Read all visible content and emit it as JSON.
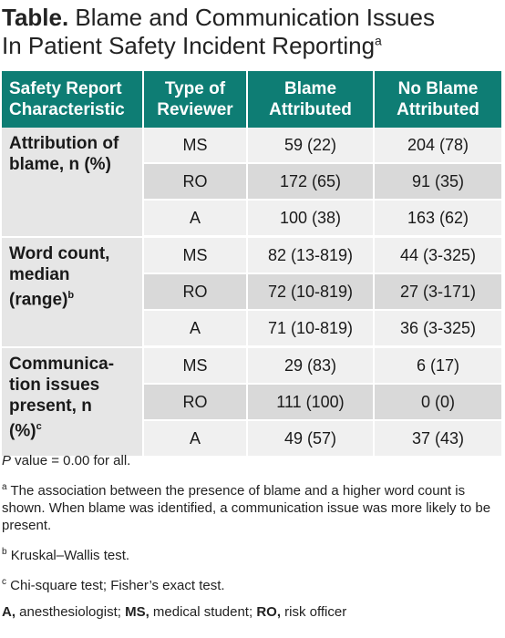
{
  "title": {
    "prefix": "Table.",
    "line1": " Blame and Communication Issues",
    "line2": "In Patient Safety Incident Reporting",
    "sup": "a"
  },
  "headers": {
    "col1": [
      "Safety Report",
      "Characteristic"
    ],
    "col2": [
      "Type of",
      "Reviewer"
    ],
    "col3": [
      "Blame",
      "Attributed"
    ],
    "col4": [
      "No Blame",
      "Attributed"
    ]
  },
  "groups": [
    {
      "label": [
        "Attribution of",
        "blame, n (%)"
      ],
      "sup": "",
      "rows": [
        {
          "reviewer": "MS",
          "blame": "59 (22)",
          "no_blame": "204 (78)"
        },
        {
          "reviewer": "RO",
          "blame": "172 (65)",
          "no_blame": "91 (35)"
        },
        {
          "reviewer": "A",
          "blame": "100 (38)",
          "no_blame": "163 (62)"
        }
      ]
    },
    {
      "label": [
        "Word count,",
        "median",
        "(range)"
      ],
      "sup": "b",
      "rows": [
        {
          "reviewer": "MS",
          "blame": "82 (13-819)",
          "no_blame": "44 (3-325)"
        },
        {
          "reviewer": "RO",
          "blame": "72 (10-819)",
          "no_blame": "27 (3-171)"
        },
        {
          "reviewer": "A",
          "blame": "71 (10-819)",
          "no_blame": "36 (3-325)"
        }
      ]
    },
    {
      "label": [
        "Communica-",
        "tion issues",
        "present, n",
        "(%)"
      ],
      "sup": "c",
      "rows": [
        {
          "reviewer": "MS",
          "blame": "29 (83)",
          "no_blame": "6 (17)"
        },
        {
          "reviewer": "RO",
          "blame": "111 (100)",
          "no_blame": "0 (0)"
        },
        {
          "reviewer": "A",
          "blame": "49 (57)",
          "no_blame": "37 (43)"
        }
      ]
    }
  ],
  "notes": {
    "pvalue_ital": "P",
    "pvalue_rest": " value = 0.00 for all.",
    "a_sup": "a",
    "a_text": " The association between the presence of blame and a higher word count is shown. When blame was identified, a communication issue was more likely to be present.",
    "b_sup": "b",
    "b_text": " Kruskal–Wallis test.",
    "c_sup": "c",
    "c_text": " Chi-square test; Fisher’s exact test.",
    "abbr_a": "A,",
    "abbr_a_text": " anesthesiologist; ",
    "abbr_ms": "MS,",
    "abbr_ms_text": " medical student; ",
    "abbr_ro": "RO,",
    "abbr_ro_text": " risk officer"
  },
  "colors": {
    "header_bg": "#0e7d74",
    "label_bg": "#e6e6e6",
    "row_light": "#f0f0f0",
    "row_dark": "#d9d9d9"
  }
}
